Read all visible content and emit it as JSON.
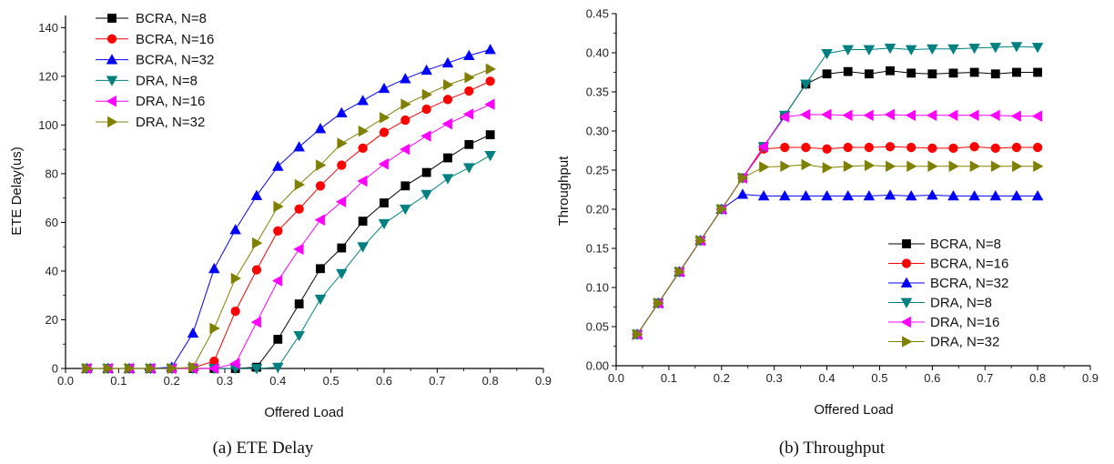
{
  "figure": {
    "colors": {
      "BCRA, N=8": "#000000",
      "BCRA, N=16": "#ff0000",
      "BCRA, N=32": "#0000ff",
      "DRA, N=8": "#008080",
      "DRA, N=16": "#ff00ff",
      "DRA, N=32": "#808000"
    }
  },
  "chart_data": [
    {
      "type": "line",
      "caption": "(a) ETE Delay",
      "xlabel": "Offered Load",
      "ylabel": "ETE Delay(us)",
      "xlim": [
        0.0,
        0.9
      ],
      "ylim": [
        0,
        145
      ],
      "xticks": [
        "0.0",
        "0.1",
        "0.2",
        "0.3",
        "0.4",
        "0.5",
        "0.6",
        "0.7",
        "0.8",
        "0.9"
      ],
      "yticks": [
        "0",
        "20",
        "40",
        "60",
        "80",
        "100",
        "120",
        "140"
      ],
      "legend": "top-left",
      "x": [
        0.04,
        0.08,
        0.12,
        0.16,
        0.2,
        0.24,
        0.28,
        0.32,
        0.36,
        0.4,
        0.44,
        0.48,
        0.52,
        0.56,
        0.6,
        0.64,
        0.68,
        0.72,
        0.76,
        0.8
      ],
      "series": [
        {
          "name": "BCRA, N=8",
          "marker": "square",
          "values": [
            0,
            0,
            0,
            0,
            0,
            0,
            0,
            0,
            0.5,
            12,
            26.5,
            41,
            49.5,
            60.5,
            68,
            75,
            80.5,
            86.5,
            92,
            96
          ]
        },
        {
          "name": "BCRA, N=16",
          "marker": "circle",
          "values": [
            0,
            0,
            0,
            0,
            0,
            0.3,
            3,
            23.5,
            40.5,
            56.5,
            65.5,
            75,
            83.5,
            90.5,
            97,
            102,
            106.5,
            110.5,
            114,
            118
          ]
        },
        {
          "name": "BCRA, N=32",
          "marker": "triangle-up",
          "values": [
            0,
            0,
            0,
            0,
            0.5,
            14.5,
            41,
            57,
            71,
            83,
            91,
            98.5,
            105,
            110,
            115,
            119,
            122.5,
            125.5,
            128.5,
            131
          ]
        },
        {
          "name": "DRA, N=8",
          "marker": "triangle-down",
          "values": [
            0,
            0,
            0,
            0,
            0,
            0,
            0,
            0,
            0,
            0.5,
            13.5,
            28.5,
            39,
            50,
            59.5,
            65.5,
            71.5,
            78,
            82.5,
            87.5
          ]
        },
        {
          "name": "DRA, N=16",
          "marker": "triangle-left",
          "values": [
            0,
            0,
            0,
            0,
            0,
            0,
            0,
            2,
            19,
            36,
            49,
            61,
            68.5,
            77,
            84,
            90,
            95.5,
            100.5,
            104.5,
            108.5
          ]
        },
        {
          "name": "DRA, N=32",
          "marker": "triangle-right",
          "values": [
            0,
            0,
            0,
            0,
            0,
            0.5,
            16.5,
            37,
            51.5,
            66.5,
            75.5,
            83.5,
            92.5,
            97.5,
            103,
            108.5,
            112.5,
            116.5,
            119.5,
            123
          ]
        }
      ]
    },
    {
      "type": "line",
      "caption": "(b) Throughput",
      "xlabel": "Offered Load",
      "ylabel": "Throughput",
      "xlim": [
        0.0,
        0.9
      ],
      "ylim": [
        0.0,
        0.45
      ],
      "xticks": [
        "0.0",
        "0.1",
        "0.2",
        "0.3",
        "0.4",
        "0.5",
        "0.6",
        "0.7",
        "0.8",
        "0.9"
      ],
      "yticks": [
        "0.00",
        "0.05",
        "0.10",
        "0.15",
        "0.20",
        "0.25",
        "0.30",
        "0.35",
        "0.40",
        "0.45"
      ],
      "legend": "bottom-right",
      "x": [
        0.04,
        0.08,
        0.12,
        0.16,
        0.2,
        0.24,
        0.28,
        0.32,
        0.36,
        0.4,
        0.44,
        0.48,
        0.52,
        0.56,
        0.6,
        0.64,
        0.68,
        0.72,
        0.76,
        0.8
      ],
      "series": [
        {
          "name": "BCRA, N=8",
          "marker": "square",
          "values": [
            0.04,
            0.08,
            0.12,
            0.16,
            0.2,
            0.24,
            0.28,
            0.32,
            0.36,
            0.373,
            0.376,
            0.373,
            0.377,
            0.374,
            0.373,
            0.374,
            0.375,
            0.373,
            0.375,
            0.375
          ]
        },
        {
          "name": "BCRA, N=16",
          "marker": "circle",
          "values": [
            0.04,
            0.08,
            0.12,
            0.16,
            0.2,
            0.24,
            0.277,
            0.279,
            0.279,
            0.277,
            0.279,
            0.279,
            0.28,
            0.279,
            0.278,
            0.278,
            0.28,
            0.278,
            0.279,
            0.279
          ]
        },
        {
          "name": "BCRA, N=32",
          "marker": "triangle-up",
          "values": [
            0.04,
            0.08,
            0.12,
            0.16,
            0.2,
            0.219,
            0.217,
            0.217,
            0.217,
            0.217,
            0.217,
            0.217,
            0.218,
            0.217,
            0.218,
            0.217,
            0.217,
            0.217,
            0.217,
            0.217
          ]
        },
        {
          "name": "DRA, N=8",
          "marker": "triangle-down",
          "values": [
            0.04,
            0.08,
            0.12,
            0.16,
            0.2,
            0.24,
            0.28,
            0.32,
            0.36,
            0.399,
            0.404,
            0.404,
            0.406,
            0.404,
            0.405,
            0.405,
            0.406,
            0.407,
            0.408,
            0.407
          ]
        },
        {
          "name": "DRA, N=16",
          "marker": "triangle-left",
          "values": [
            0.04,
            0.08,
            0.12,
            0.16,
            0.2,
            0.24,
            0.28,
            0.318,
            0.321,
            0.321,
            0.32,
            0.32,
            0.321,
            0.32,
            0.32,
            0.32,
            0.32,
            0.32,
            0.319,
            0.319
          ]
        },
        {
          "name": "DRA, N=32",
          "marker": "triangle-right",
          "values": [
            0.04,
            0.08,
            0.12,
            0.16,
            0.2,
            0.24,
            0.254,
            0.255,
            0.257,
            0.253,
            0.255,
            0.256,
            0.255,
            0.255,
            0.255,
            0.255,
            0.255,
            0.255,
            0.255,
            0.255
          ]
        }
      ]
    }
  ]
}
